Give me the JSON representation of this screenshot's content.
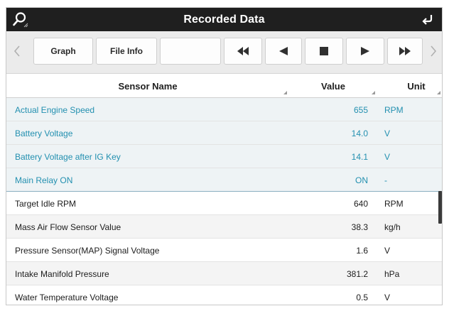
{
  "header": {
    "title": "Recorded Data",
    "left_icon": "search-icon",
    "right_icon": "return-icon"
  },
  "toolbar": {
    "graph_label": "Graph",
    "fileinfo_label": "File Info",
    "empty_label": "",
    "prev_icon": "chevron-left-icon",
    "next_icon": "chevron-right-icon",
    "rewind_icon": "rewind-icon",
    "back_icon": "step-back-icon",
    "stop_icon": "stop-icon",
    "play_icon": "play-icon",
    "ff_icon": "fast-forward-icon"
  },
  "columns": {
    "name": "Sensor Name",
    "value": "Value",
    "unit": "Unit"
  },
  "rows": [
    {
      "name": "Actual Engine Speed",
      "value": "655",
      "unit": "RPM"
    },
    {
      "name": "Battery Voltage",
      "value": "14.0",
      "unit": "V"
    },
    {
      "name": "Battery Voltage after IG Key",
      "value": "14.1",
      "unit": "V"
    },
    {
      "name": "Main Relay ON",
      "value": "ON",
      "unit": "-"
    },
    {
      "name": "Target Idle RPM",
      "value": "640",
      "unit": "RPM"
    },
    {
      "name": "Mass Air Flow Sensor Value",
      "value": "38.3",
      "unit": "kg/h"
    },
    {
      "name": "Pressure Sensor(MAP) Signal Voltage",
      "value": "1.6",
      "unit": "V"
    },
    {
      "name": "Intake Manifold Pressure",
      "value": "381.2",
      "unit": "hPa"
    },
    {
      "name": "Water Temperature Voltage",
      "value": "0.5",
      "unit": "V"
    }
  ],
  "colors": {
    "selected_text": "#2390b0",
    "title_bar": "#1f1f1f"
  }
}
